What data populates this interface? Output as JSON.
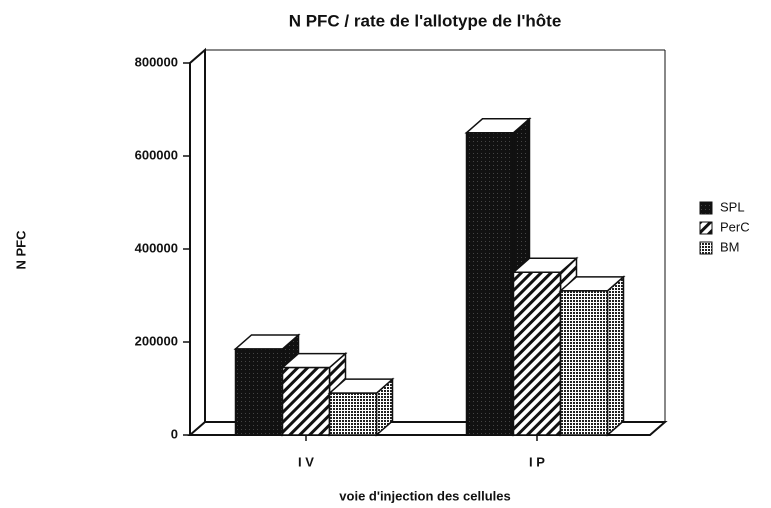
{
  "chart_data": {
    "type": "bar3d",
    "title": "N PFC / rate de l'allotype de l'hôte",
    "x_label": "voie d'injection des cellules",
    "y_label": "N PFC",
    "categories": [
      "I V",
      "I P"
    ],
    "series": [
      {
        "name": "SPL",
        "values": [
          185000,
          650000
        ]
      },
      {
        "name": "PerC",
        "values": [
          145000,
          350000
        ]
      },
      {
        "name": "BM",
        "values": [
          90000,
          310000
        ]
      }
    ],
    "ylim": [
      0,
      800000
    ],
    "yticks": [
      0,
      200000,
      400000,
      600000,
      800000
    ]
  }
}
